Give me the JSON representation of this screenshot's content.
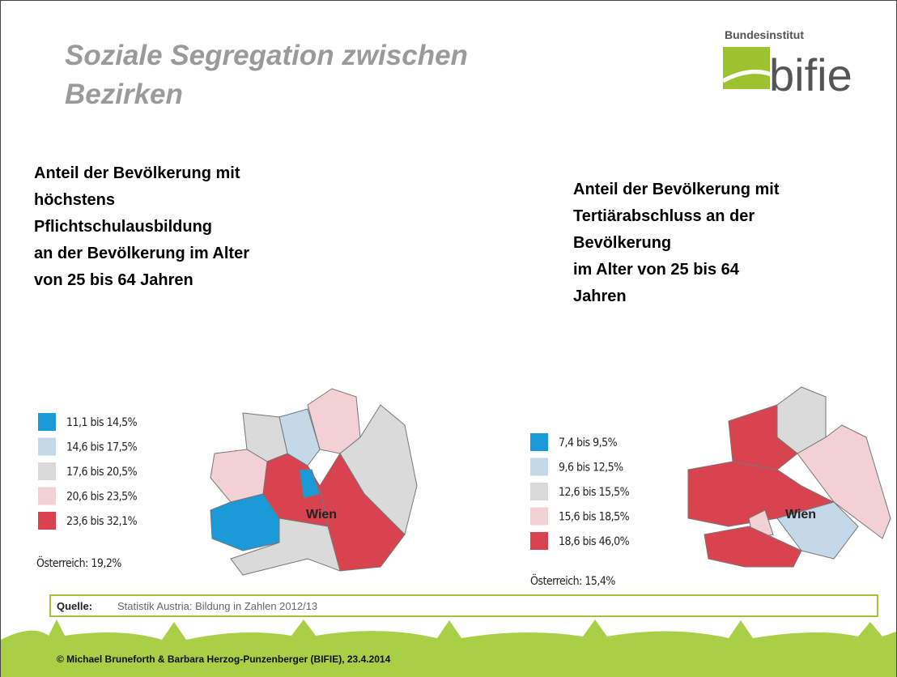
{
  "header": {
    "title_lines": [
      "Soziale Segregation zwischen",
      "Bezirken"
    ],
    "logo_top": "Bundesinstitut",
    "logo_word": "bifie"
  },
  "panels": [
    {
      "heading_lines": [
        "Anteil der Bevölkerung mit",
        "höchstens",
        "Pflichtschulausbildung",
        "an der Bevölkerung im Alter",
        "von 25 bis 64 Jahren"
      ],
      "legend": [
        {
          "label": "11,1 bis 14,5%",
          "color": "#1a9ad6"
        },
        {
          "label": "14,6 bis 17,5%",
          "color": "#c3d9ea"
        },
        {
          "label": "17,6 bis 20,5%",
          "color": "#dadada"
        },
        {
          "label": "20,6 bis 23,5%",
          "color": "#f3d0d5"
        },
        {
          "label": "23,6 bis 32,1%",
          "color": "#d8434f"
        }
      ],
      "note": "Österreich: 19,2%",
      "map_label": "Wien"
    },
    {
      "heading_lines": [
        "Anteil der Bevölkerung mit",
        "Tertiärabschluss an der",
        "Bevölkerung",
        "im Alter von 25 bis 64",
        "Jahren"
      ],
      "legend": [
        {
          "label": "7,4 bis   9,5%",
          "color": "#1a9ad6"
        },
        {
          "label": "9,6 bis 12,5%",
          "color": "#c3d9ea"
        },
        {
          "label": "12,6 bis 15,5%",
          "color": "#dadada"
        },
        {
          "label": "15,6 bis 18,5%",
          "color": "#f3d0d5"
        },
        {
          "label": "18,6 bis 46,0%",
          "color": "#d8434f"
        }
      ],
      "note": "Österreich: 15,4%",
      "map_label": "Wien"
    }
  ],
  "source": {
    "label": "Quelle:",
    "text": "Statistik Austria: Bildung in Zahlen 2012/13"
  },
  "footer": "© Michael Bruneforth & Barbara Herzog-Punzenberger (BIFIE), 23.4.2014"
}
